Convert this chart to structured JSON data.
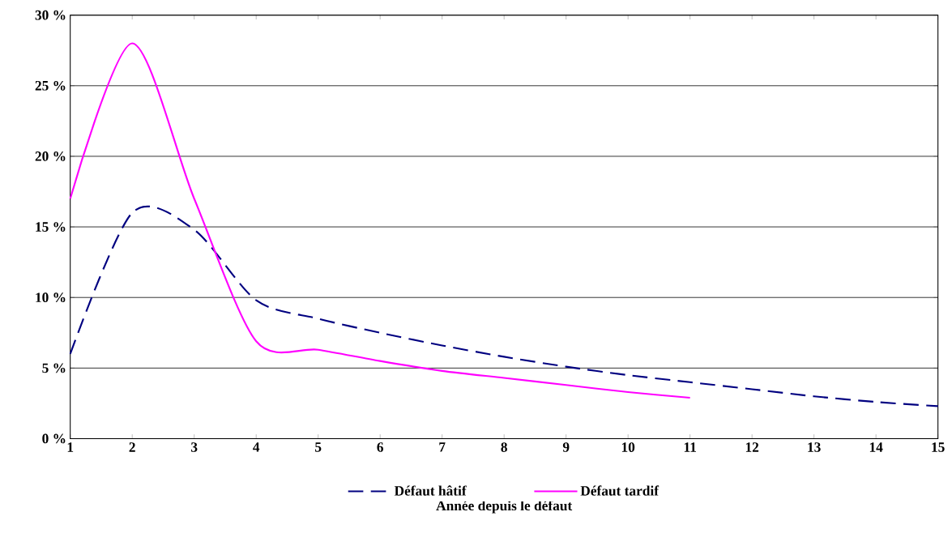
{
  "chart_data": {
    "type": "line",
    "xlabel": "Année depuis le défaut",
    "x": [
      1,
      2,
      3,
      4,
      5,
      6,
      7,
      8,
      9,
      10,
      11,
      12,
      13,
      14,
      15
    ],
    "series": [
      {
        "name": "Défaut hâtif",
        "color": "#000080",
        "line_style": "dashed",
        "values": [
          6,
          16,
          14.8,
          9.8,
          8.5,
          7.5,
          6.6,
          5.8,
          5.1,
          4.5,
          4.0,
          3.5,
          3.0,
          2.6,
          2.3
        ]
      },
      {
        "name": "Défaut tardif",
        "color": "#ff00ff",
        "line_style": "solid",
        "values": [
          17,
          28,
          17,
          6.9,
          6.3,
          5.5,
          4.8,
          4.3,
          3.8,
          3.3,
          2.9,
          null,
          null,
          null,
          null
        ]
      }
    ],
    "xlim": [
      1,
      15
    ],
    "xticks": [
      1,
      2,
      3,
      4,
      5,
      6,
      7,
      8,
      9,
      10,
      11,
      12,
      13,
      14,
      15
    ],
    "ylim": [
      0,
      30
    ],
    "yticks": [
      {
        "value": 0,
        "label": "0 %"
      },
      {
        "value": 5,
        "label": "5 %"
      },
      {
        "value": 10,
        "label": "10 %"
      },
      {
        "value": 15,
        "label": "15 %"
      },
      {
        "value": 20,
        "label": "20 %"
      },
      {
        "value": 25,
        "label": "25 %"
      },
      {
        "value": 30,
        "label": "30 %"
      }
    ],
    "grid": "y",
    "legend": "bottom"
  }
}
